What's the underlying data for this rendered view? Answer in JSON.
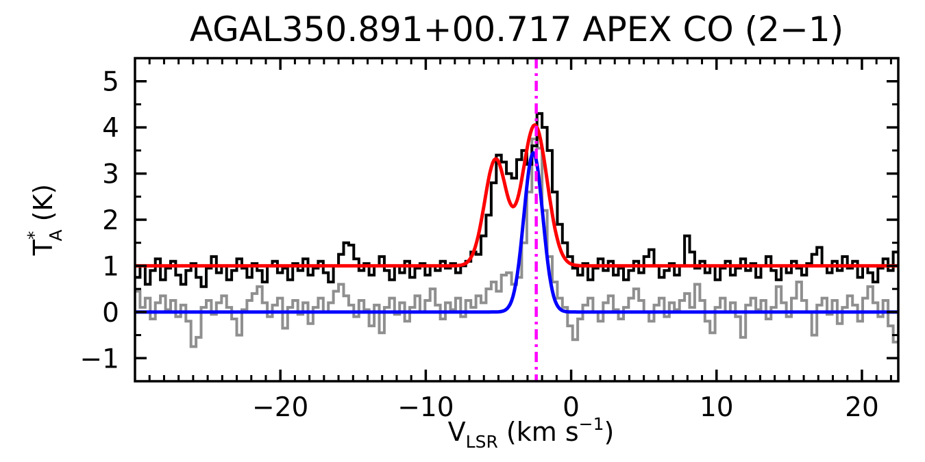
{
  "chart_data": {
    "type": "line",
    "title": "AGAL350.891+00.717  APEX CO (2−1)",
    "xlabel": {
      "main": "V",
      "sub": "LSR",
      "mid": " (km s",
      "sup": "−1",
      "close": ")"
    },
    "ylabel": {
      "main": "T",
      "sup": "*",
      "sub": "A",
      "rest": " (K)"
    },
    "xlim": [
      -30.0,
      22.5
    ],
    "ylim": [
      -1.5,
      5.5
    ],
    "x_major_ticks": [
      -20,
      -10,
      0,
      10,
      20
    ],
    "x_major_labels": [
      "−20",
      "−10",
      "0",
      "10",
      "20"
    ],
    "x_minor_step": 1,
    "y_major_ticks": [
      -1,
      0,
      1,
      2,
      3,
      4,
      5
    ],
    "y_major_labels": [
      "−1",
      "0",
      "1",
      "2",
      "3",
      "4",
      "5"
    ],
    "y_minor_step": 0.5,
    "grid": false,
    "legend": null,
    "colors": {
      "observed_spectrum": "#000000",
      "reference_spectrum": "#8f8f8f",
      "observed_fit": "#ff0000",
      "reference_fit": "#0000ff",
      "velocity_marker": "#ff00ff",
      "frame": "#000000",
      "background": "#ffffff"
    },
    "spectra": [
      {
        "name": "co21-observed-offset",
        "color_key": "observed_spectrum",
        "baseline_offset": 1.0,
        "x0": -30.0,
        "dx": 0.35,
        "values": [
          0.75,
          1.0,
          0.6,
          0.9,
          1.15,
          0.7,
          0.95,
          1.1,
          0.8,
          0.6,
          0.9,
          1.05,
          0.75,
          0.55,
          0.95,
          1.2,
          0.85,
          1.0,
          0.7,
          0.9,
          1.15,
          0.95,
          0.75,
          1.05,
          0.9,
          0.65,
          1.0,
          1.1,
          0.85,
          0.95,
          0.7,
          1.05,
          0.9,
          1.15,
          0.8,
          0.95,
          1.1,
          0.85,
          0.65,
          1.0,
          1.25,
          1.5,
          1.45,
          1.15,
          0.9,
          1.05,
          0.8,
          1.0,
          1.2,
          0.9,
          0.7,
          1.0,
          0.85,
          1.1,
          0.75,
          0.95,
          1.05,
          0.8,
          1.0,
          0.9,
          1.1,
          0.95,
          1.05,
          0.85,
          1.0,
          1.1,
          1.3,
          1.25,
          1.65,
          2.1,
          2.8,
          3.4,
          3.25,
          3.0,
          2.9,
          3.3,
          3.5,
          3.2,
          3.6,
          4.3,
          4.0,
          3.5,
          2.6,
          1.9,
          1.5,
          1.2,
          0.95,
          0.8,
          1.05,
          0.7,
          0.95,
          1.15,
          0.9,
          1.1,
          0.8,
          0.95,
          0.7,
          0.9,
          1.1,
          0.85,
          1.2,
          1.35,
          1.0,
          0.75,
          0.9,
          1.05,
          0.8,
          1.0,
          1.65,
          1.3,
          0.95,
          1.1,
          0.85,
          1.0,
          0.7,
          0.95,
          1.1,
          0.8,
          0.95,
          1.15,
          0.9,
          1.05,
          0.75,
          1.0,
          1.2,
          0.9,
          0.7,
          1.0,
          0.85,
          1.1,
          0.95,
          0.8,
          1.05,
          1.25,
          1.4,
          1.0,
          0.85,
          1.1,
          0.9,
          1.2,
          0.95,
          1.1,
          0.75,
          1.0,
          0.85,
          0.65,
          0.95,
          1.15,
          0.9,
          1.3
        ]
      },
      {
        "name": "reference-observed",
        "color_key": "reference_spectrum",
        "baseline_offset": 0.0,
        "x0": -30.0,
        "dx": 0.35,
        "values": [
          0.45,
          0.1,
          0.3,
          -0.15,
          0.2,
          0.35,
          0.05,
          0.25,
          -0.1,
          0.15,
          -0.2,
          -0.75,
          -0.55,
          0.1,
          0.25,
          -0.05,
          0.2,
          0.35,
          0.1,
          -0.15,
          -0.5,
          0.05,
          0.25,
          0.4,
          0.55,
          0.2,
          -0.1,
          0.15,
          0.3,
          -0.35,
          0.1,
          0.25,
          -0.05,
          0.2,
          -0.25,
          0.1,
          0.3,
          0.0,
          0.2,
          0.45,
          0.6,
          0.35,
          0.15,
          -0.1,
          0.25,
          0.05,
          -0.3,
          0.15,
          -0.45,
          0.1,
          0.3,
          -0.05,
          0.2,
          -0.2,
          0.1,
          0.35,
          0.0,
          0.25,
          0.5,
          0.15,
          -0.15,
          0.2,
          0.05,
          0.3,
          -0.1,
          0.25,
          0.1,
          0.35,
          0.2,
          0.5,
          0.65,
          0.45,
          0.8,
          0.85,
          0.6,
          0.75,
          1.5,
          2.6,
          3.75,
          3.55,
          2.2,
          1.2,
          0.65,
          0.3,
          0.1,
          -0.3,
          -0.6,
          -0.15,
          0.15,
          0.3,
          0.0,
          -0.2,
          0.2,
          0.35,
          0.05,
          -0.15,
          0.1,
          0.3,
          0.5,
          0.25,
          0.0,
          -0.2,
          0.15,
          0.3,
          -0.1,
          0.2,
          0.05,
          0.25,
          0.4,
          0.1,
          0.6,
          0.25,
          -0.2,
          -0.45,
          0.1,
          0.3,
          0.0,
          0.2,
          -0.1,
          -0.55,
          0.15,
          0.3,
          0.05,
          0.25,
          -0.15,
          0.1,
          0.55,
          0.2,
          -0.1,
          0.3,
          0.65,
          0.25,
          0.0,
          -0.5,
          0.15,
          0.3,
          -0.05,
          0.25,
          -0.25,
          0.1,
          0.35,
          0.15,
          -0.2,
          0.3,
          0.55,
          0.2,
          -0.1,
          0.25,
          -0.3,
          -0.65
        ]
      }
    ],
    "fits": [
      {
        "name": "co21-gaussian-fit",
        "color_key": "observed_fit",
        "baseline": 1.0,
        "components": [
          {
            "amp": 2.3,
            "center": -5.2,
            "sigma": 0.75
          },
          {
            "amp": 3.05,
            "center": -2.5,
            "sigma": 0.85
          }
        ]
      },
      {
        "name": "reference-gaussian-fit",
        "color_key": "reference_fit",
        "baseline": 0.0,
        "components": [
          {
            "amp": 3.45,
            "center": -2.6,
            "sigma": 0.65
          }
        ]
      }
    ],
    "vline": {
      "x": -2.4,
      "color_key": "velocity_marker",
      "style": "dash-dot"
    }
  }
}
